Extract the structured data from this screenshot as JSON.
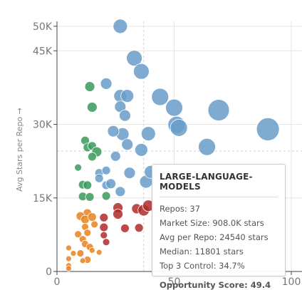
{
  "chart_data": {
    "type": "scatter",
    "title": "",
    "xlabel": "",
    "ylabel": "Avg Stars per Repo →",
    "xlim": [
      0,
      105
    ],
    "ylim": [
      0,
      51000
    ],
    "x_ticks": [
      0,
      50,
      100
    ],
    "x_tick_labels": [
      "0",
      "50",
      "100"
    ],
    "y_ticks": [
      0,
      15000,
      30000,
      45000,
      50000
    ],
    "y_tick_labels": [
      "0",
      "15K",
      "30K",
      "45K",
      "50K"
    ],
    "reference_lines": {
      "x": 37,
      "y": 24540
    },
    "colors": {
      "blue": "#6a9cc9",
      "green": "#3a9a5a",
      "orange": "#e8821e",
      "red": "#b02a2a"
    },
    "points": [
      {
        "x": 27,
        "y": 50000,
        "r": 10,
        "c": "blue"
      },
      {
        "x": 33,
        "y": 43500,
        "r": 11,
        "c": "blue"
      },
      {
        "x": 36,
        "y": 40800,
        "r": 11,
        "c": "blue"
      },
      {
        "x": 21,
        "y": 38300,
        "r": 8,
        "c": "blue"
      },
      {
        "x": 27,
        "y": 35800,
        "r": 9,
        "c": "blue"
      },
      {
        "x": 30,
        "y": 35800,
        "r": 9,
        "c": "blue"
      },
      {
        "x": 27,
        "y": 33600,
        "r": 8,
        "c": "blue"
      },
      {
        "x": 29,
        "y": 31800,
        "r": 8,
        "c": "blue"
      },
      {
        "x": 44,
        "y": 35600,
        "r": 12,
        "c": "blue"
      },
      {
        "x": 50,
        "y": 33400,
        "r": 12,
        "c": "blue"
      },
      {
        "x": 51,
        "y": 29900,
        "r": 12,
        "c": "blue"
      },
      {
        "x": 52,
        "y": 29300,
        "r": 12,
        "c": "blue"
      },
      {
        "x": 69,
        "y": 32900,
        "r": 15,
        "c": "blue"
      },
      {
        "x": 90,
        "y": 29000,
        "r": 16,
        "c": "blue"
      },
      {
        "x": 64,
        "y": 25400,
        "r": 12,
        "c": "blue"
      },
      {
        "x": 39,
        "y": 28100,
        "r": 10,
        "c": "blue"
      },
      {
        "x": 28,
        "y": 28000,
        "r": 9,
        "c": "blue"
      },
      {
        "x": 24,
        "y": 28600,
        "r": 8,
        "c": "blue"
      },
      {
        "x": 30,
        "y": 25900,
        "r": 8,
        "c": "blue"
      },
      {
        "x": 25,
        "y": 23500,
        "r": 7,
        "c": "blue"
      },
      {
        "x": 36,
        "y": 24800,
        "r": 9,
        "c": "blue"
      },
      {
        "x": 31,
        "y": 20100,
        "r": 8,
        "c": "blue"
      },
      {
        "x": 18,
        "y": 20100,
        "r": 6,
        "c": "blue"
      },
      {
        "x": 21,
        "y": 20600,
        "r": 6,
        "c": "blue"
      },
      {
        "x": 18,
        "y": 19000,
        "r": 6,
        "c": "blue"
      },
      {
        "x": 21,
        "y": 17600,
        "r": 6,
        "c": "blue"
      },
      {
        "x": 23,
        "y": 17900,
        "r": 7,
        "c": "blue"
      },
      {
        "x": 27,
        "y": 16300,
        "r": 7,
        "c": "blue"
      },
      {
        "x": 38,
        "y": 18300,
        "r": 9,
        "c": "blue"
      },
      {
        "x": 40,
        "y": 20300,
        "r": 9,
        "c": "blue"
      },
      {
        "x": 14,
        "y": 37700,
        "r": 7,
        "c": "green"
      },
      {
        "x": 15,
        "y": 33500,
        "r": 7,
        "c": "green"
      },
      {
        "x": 12,
        "y": 26700,
        "r": 6,
        "c": "green"
      },
      {
        "x": 13,
        "y": 25300,
        "r": 6,
        "c": "green"
      },
      {
        "x": 15,
        "y": 25600,
        "r": 6,
        "c": "green"
      },
      {
        "x": 17,
        "y": 24400,
        "r": 7,
        "c": "green"
      },
      {
        "x": 15,
        "y": 23400,
        "r": 6,
        "c": "green"
      },
      {
        "x": 9,
        "y": 21200,
        "r": 5,
        "c": "green"
      },
      {
        "x": 11,
        "y": 17700,
        "r": 6,
        "c": "green"
      },
      {
        "x": 13,
        "y": 17600,
        "r": 6,
        "c": "green"
      },
      {
        "x": 11,
        "y": 15300,
        "r": 6,
        "c": "green"
      },
      {
        "x": 14,
        "y": 15200,
        "r": 6,
        "c": "green"
      },
      {
        "x": 21,
        "y": 15400,
        "r": 6,
        "c": "green"
      },
      {
        "x": 13,
        "y": 11900,
        "r": 6,
        "c": "orange"
      },
      {
        "x": 10,
        "y": 11300,
        "r": 6,
        "c": "orange"
      },
      {
        "x": 12,
        "y": 10600,
        "r": 6,
        "c": "orange"
      },
      {
        "x": 15,
        "y": 11100,
        "r": 6,
        "c": "orange"
      },
      {
        "x": 16,
        "y": 9600,
        "r": 5,
        "c": "orange"
      },
      {
        "x": 12,
        "y": 9100,
        "r": 5,
        "c": "orange"
      },
      {
        "x": 9,
        "y": 7600,
        "r": 5,
        "c": "orange"
      },
      {
        "x": 13,
        "y": 7900,
        "r": 5,
        "c": "orange"
      },
      {
        "x": 11,
        "y": 6600,
        "r": 5,
        "c": "orange"
      },
      {
        "x": 12,
        "y": 5600,
        "r": 5,
        "c": "orange"
      },
      {
        "x": 14,
        "y": 5000,
        "r": 5,
        "c": "orange"
      },
      {
        "x": 10,
        "y": 3700,
        "r": 5,
        "c": "orange"
      },
      {
        "x": 13,
        "y": 2400,
        "r": 5,
        "c": "orange"
      },
      {
        "x": 5,
        "y": 4800,
        "r": 4,
        "c": "orange"
      },
      {
        "x": 7,
        "y": 3700,
        "r": 4,
        "c": "orange"
      },
      {
        "x": 5,
        "y": 2600,
        "r": 4,
        "c": "orange"
      },
      {
        "x": 5,
        "y": 1200,
        "r": 4,
        "c": "orange"
      },
      {
        "x": 18,
        "y": 3900,
        "r": 4,
        "c": "orange"
      },
      {
        "x": 11,
        "y": 2200,
        "r": 4,
        "c": "orange"
      },
      {
        "x": 15,
        "y": 4300,
        "r": 4,
        "c": "orange"
      },
      {
        "x": 5,
        "y": 600,
        "r": 4,
        "c": "orange"
      },
      {
        "x": 20,
        "y": 11000,
        "r": 6,
        "c": "red"
      },
      {
        "x": 26,
        "y": 13000,
        "r": 7,
        "c": "red"
      },
      {
        "x": 26,
        "y": 11700,
        "r": 7,
        "c": "red"
      },
      {
        "x": 34,
        "y": 12800,
        "r": 7,
        "c": "red"
      },
      {
        "x": 37,
        "y": 12500,
        "r": 8,
        "c": "red"
      },
      {
        "x": 39,
        "y": 13400,
        "r": 8,
        "c": "red"
      },
      {
        "x": 20,
        "y": 9000,
        "r": 6,
        "c": "red"
      },
      {
        "x": 29,
        "y": 8800,
        "r": 6,
        "c": "red"
      },
      {
        "x": 35,
        "y": 8900,
        "r": 6,
        "c": "red"
      },
      {
        "x": 20,
        "y": 7400,
        "r": 5,
        "c": "red"
      },
      {
        "x": 21,
        "y": 6000,
        "r": 5,
        "c": "red"
      }
    ]
  },
  "tooltip": {
    "title": "LARGE-LANGUAGE-MODELS",
    "repos": "Repos: 37",
    "market_size": "Market Size: 908.0K stars",
    "avg_per_repo": "Avg per Repo: 24540 stars",
    "median": "Median: 11801 stars",
    "top3": "Top 3 Control: 34.7%",
    "score": "Opportunity Score: 49.4"
  }
}
